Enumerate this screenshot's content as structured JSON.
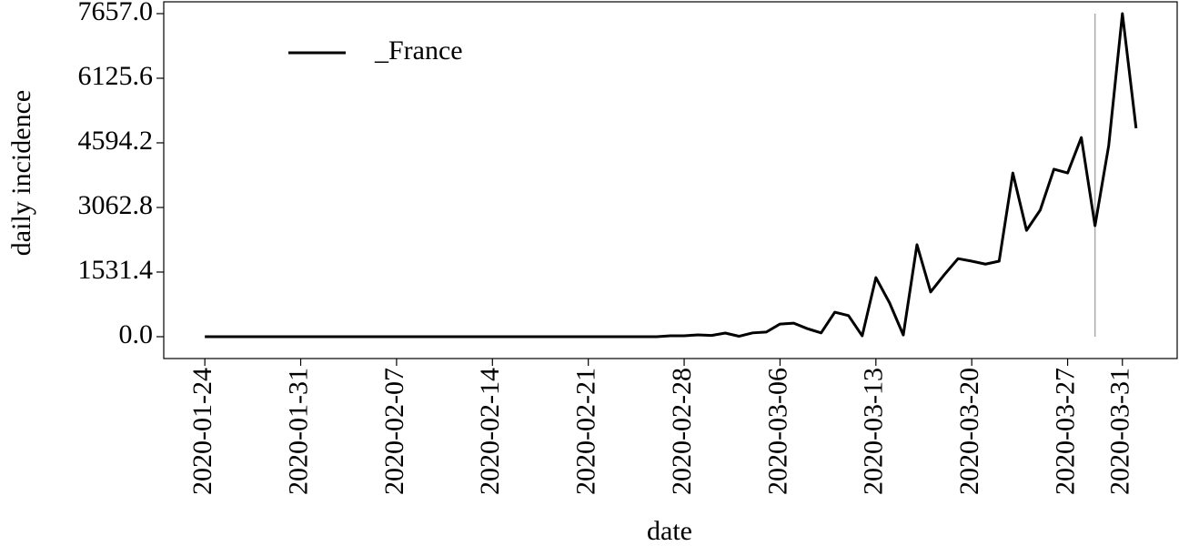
{
  "chart_data": {
    "type": "line",
    "x": [
      "2020-01-24",
      "2020-01-25",
      "2020-01-26",
      "2020-01-27",
      "2020-01-28",
      "2020-01-29",
      "2020-01-30",
      "2020-01-31",
      "2020-02-01",
      "2020-02-02",
      "2020-02-03",
      "2020-02-04",
      "2020-02-05",
      "2020-02-06",
      "2020-02-07",
      "2020-02-08",
      "2020-02-09",
      "2020-02-10",
      "2020-02-11",
      "2020-02-12",
      "2020-02-13",
      "2020-02-14",
      "2020-02-15",
      "2020-02-16",
      "2020-02-17",
      "2020-02-18",
      "2020-02-19",
      "2020-02-20",
      "2020-02-21",
      "2020-02-22",
      "2020-02-23",
      "2020-02-24",
      "2020-02-25",
      "2020-02-26",
      "2020-02-27",
      "2020-02-28",
      "2020-02-29",
      "2020-03-01",
      "2020-03-02",
      "2020-03-03",
      "2020-03-04",
      "2020-03-05",
      "2020-03-06",
      "2020-03-07",
      "2020-03-08",
      "2020-03-09",
      "2020-03-10",
      "2020-03-11",
      "2020-03-12",
      "2020-03-13",
      "2020-03-14",
      "2020-03-15",
      "2020-03-16",
      "2020-03-17",
      "2020-03-18",
      "2020-03-19",
      "2020-03-20",
      "2020-03-21",
      "2020-03-22",
      "2020-03-23",
      "2020-03-24",
      "2020-03-25",
      "2020-03-26",
      "2020-03-27",
      "2020-03-28",
      "2020-03-29",
      "2020-03-30",
      "2020-03-31",
      "2020-04-01"
    ],
    "series": [
      {
        "name": "_France",
        "color": "#000000",
        "values": [
          0,
          0,
          0,
          0,
          0,
          0,
          0,
          0,
          0,
          0,
          0,
          0,
          0,
          0,
          0,
          0,
          0,
          0,
          0,
          0,
          0,
          0,
          0,
          0,
          0,
          0,
          0,
          0,
          0,
          0,
          0,
          0,
          0,
          0,
          20,
          20,
          43,
          30,
          86,
          10,
          90,
          110,
          300,
          320,
          190,
          90,
          580,
          500,
          20,
          1400,
          800,
          40,
          2180,
          1060,
          1470,
          1850,
          1790,
          1720,
          1790,
          3880,
          2520,
          3000,
          3970,
          3880,
          4720,
          2630,
          4530,
          7657,
          4940
        ]
      }
    ],
    "xlabel": "date",
    "ylabel": "daily incidence",
    "xlim": [
      "2020-01-21",
      "2020-04-04"
    ],
    "xticks": [
      "2020-01-24",
      "2020-01-31",
      "2020-02-07",
      "2020-02-14",
      "2020-02-21",
      "2020-02-28",
      "2020-03-06",
      "2020-03-13",
      "2020-03-20",
      "2020-03-27",
      "2020-03-31"
    ],
    "ylim": [
      -518,
      7937
    ],
    "yticks": [
      {
        "value": 0,
        "label": "0.0"
      },
      1531.4,
      3062.8,
      4594.2,
      6125.6,
      {
        "value": 7657,
        "label": "7657.0"
      }
    ],
    "vline": "2020-03-29",
    "vline_color": "#aaaaaa",
    "legend": "upper left",
    "grid": false
  }
}
